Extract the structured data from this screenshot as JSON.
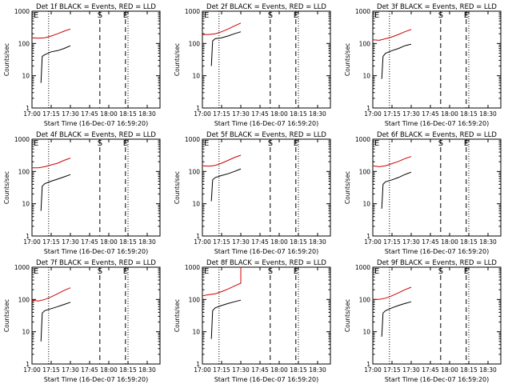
{
  "chart_data": [
    {
      "type": "line",
      "title": "Det 1f BLACK = Events, RED = LLD",
      "xlabel": "Start Time (16-Dec-07 16:59:20)",
      "ylabel": "Counts/sec",
      "x_tick_labels": [
        "17:00",
        "17:15",
        "17:30",
        "17:45",
        "18:00",
        "18:15",
        "18:30"
      ],
      "y_tick_labels": [
        "1",
        "10",
        "100",
        "1000"
      ],
      "ylim": [
        1,
        1000
      ],
      "log_y": true,
      "marker_labels": [
        "E",
        "S",
        "E"
      ],
      "dotted_lines": [
        "17:13",
        "18:15"
      ],
      "dashed_lines": [
        "17:53",
        "18:13"
      ],
      "series": [
        {
          "color": "#000000",
          "points": [
            [
              "17:07",
              6
            ],
            [
              "17:08",
              40
            ],
            [
              "17:10",
              45
            ],
            [
              "17:15",
              55
            ],
            [
              "17:20",
              60
            ],
            [
              "17:25",
              70
            ],
            [
              "17:30",
              85
            ]
          ]
        },
        {
          "color": "#cc0000",
          "points": [
            [
              "17:00",
              150
            ],
            [
              "17:05",
              145
            ],
            [
              "17:10",
              150
            ],
            [
              "17:15",
              170
            ],
            [
              "17:20",
              200
            ],
            [
              "17:25",
              240
            ],
            [
              "17:30",
              280
            ]
          ]
        }
      ]
    },
    {
      "type": "line",
      "title": "Det 2f BLACK = Events, RED = LLD",
      "xlabel": "Start Time (16-Dec-07 16:59:20)",
      "ylabel": "Counts/sec",
      "x_tick_labels": [
        "17:00",
        "17:15",
        "17:30",
        "17:45",
        "18:00",
        "18:15",
        "18:30"
      ],
      "y_tick_labels": [
        "1",
        "10",
        "100",
        "1000"
      ],
      "ylim": [
        1,
        1000
      ],
      "log_y": true,
      "marker_labels": [
        "E",
        "S",
        "E"
      ],
      "dotted_lines": [
        "17:13",
        "18:15"
      ],
      "dashed_lines": [
        "17:53",
        "18:13"
      ],
      "series": [
        {
          "color": "#000000",
          "points": [
            [
              "17:07",
              20
            ],
            [
              "17:08",
              120
            ],
            [
              "17:10",
              140
            ],
            [
              "17:15",
              150
            ],
            [
              "17:20",
              170
            ],
            [
              "17:25",
              200
            ],
            [
              "17:30",
              230
            ]
          ]
        },
        {
          "color": "#cc0000",
          "points": [
            [
              "17:00",
              190
            ],
            [
              "17:05",
              190
            ],
            [
              "17:10",
              200
            ],
            [
              "17:15",
              230
            ],
            [
              "17:20",
              280
            ],
            [
              "17:25",
              350
            ],
            [
              "17:30",
              430
            ]
          ]
        }
      ]
    },
    {
      "type": "line",
      "title": "Det 3f BLACK = Events, RED = LLD",
      "xlabel": "Start Time (16-Dec-07 16:59:20)",
      "ylabel": "Counts/sec",
      "x_tick_labels": [
        "17:00",
        "17:15",
        "17:30",
        "17:45",
        "18:00",
        "18:15",
        "18:30"
      ],
      "y_tick_labels": [
        "1",
        "10",
        "100",
        "1000"
      ],
      "ylim": [
        1,
        1000
      ],
      "log_y": true,
      "marker_labels": [
        "E",
        "S",
        "E"
      ],
      "dotted_lines": [
        "17:13",
        "18:15"
      ],
      "dashed_lines": [
        "17:53",
        "18:13"
      ],
      "series": [
        {
          "color": "#000000",
          "points": [
            [
              "17:07",
              8
            ],
            [
              "17:08",
              40
            ],
            [
              "17:10",
              50
            ],
            [
              "17:15",
              60
            ],
            [
              "17:20",
              70
            ],
            [
              "17:25",
              85
            ],
            [
              "17:30",
              95
            ]
          ]
        },
        {
          "color": "#cc0000",
          "points": [
            [
              "17:00",
              130
            ],
            [
              "17:05",
              125
            ],
            [
              "17:10",
              140
            ],
            [
              "17:15",
              160
            ],
            [
              "17:20",
              190
            ],
            [
              "17:25",
              230
            ],
            [
              "17:30",
              270
            ]
          ]
        }
      ]
    },
    {
      "type": "line",
      "title": "Det 4f BLACK = Events, RED = LLD",
      "xlabel": "Start Time (16-Dec-07 16:59:20)",
      "ylabel": "Counts/sec",
      "x_tick_labels": [
        "17:00",
        "17:15",
        "17:30",
        "17:45",
        "18:00",
        "18:15",
        "18:30"
      ],
      "y_tick_labels": [
        "1",
        "10",
        "100",
        "1000"
      ],
      "ylim": [
        1,
        1000
      ],
      "log_y": true,
      "marker_labels": [
        "E",
        "S",
        "E"
      ],
      "dotted_lines": [
        "17:13",
        "18:15"
      ],
      "dashed_lines": [
        "17:53",
        "18:13"
      ],
      "series": [
        {
          "color": "#000000",
          "points": [
            [
              "17:07",
              6
            ],
            [
              "17:08",
              35
            ],
            [
              "17:10",
              42
            ],
            [
              "17:15",
              50
            ],
            [
              "17:20",
              58
            ],
            [
              "17:25",
              68
            ],
            [
              "17:30",
              80
            ]
          ]
        },
        {
          "color": "#cc0000",
          "points": [
            [
              "17:00",
              130
            ],
            [
              "17:05",
              130
            ],
            [
              "17:10",
              140
            ],
            [
              "17:15",
              160
            ],
            [
              "17:20",
              180
            ],
            [
              "17:25",
              220
            ],
            [
              "17:30",
              260
            ]
          ]
        }
      ]
    },
    {
      "type": "line",
      "title": "Det 5f BLACK = Events, RED = LLD",
      "xlabel": "Start Time (16-Dec-07 16:59:20)",
      "ylabel": "Counts/sec",
      "x_tick_labels": [
        "17:00",
        "17:15",
        "17:30",
        "17:45",
        "18:00",
        "18:15",
        "18:30"
      ],
      "y_tick_labels": [
        "1",
        "10",
        "100",
        "1000"
      ],
      "ylim": [
        1,
        1000
      ],
      "log_y": true,
      "marker_labels": [
        "E",
        "S",
        "E"
      ],
      "dotted_lines": [
        "17:13",
        "18:15"
      ],
      "dashed_lines": [
        "17:53",
        "18:13"
      ],
      "series": [
        {
          "color": "#000000",
          "points": [
            [
              "17:07",
              12
            ],
            [
              "17:08",
              55
            ],
            [
              "17:10",
              65
            ],
            [
              "17:15",
              75
            ],
            [
              "17:20",
              85
            ],
            [
              "17:25",
              100
            ],
            [
              "17:30",
              120
            ]
          ]
        },
        {
          "color": "#cc0000",
          "points": [
            [
              "17:00",
              150
            ],
            [
              "17:05",
              145
            ],
            [
              "17:10",
              155
            ],
            [
              "17:15",
              180
            ],
            [
              "17:20",
              220
            ],
            [
              "17:25",
              270
            ],
            [
              "17:30",
              320
            ]
          ]
        }
      ]
    },
    {
      "type": "line",
      "title": "Det 6f BLACK = Events, RED = LLD",
      "xlabel": "Start Time (16-Dec-07 16:59:20)",
      "ylabel": "Counts/sec",
      "x_tick_labels": [
        "17:00",
        "17:15",
        "17:30",
        "17:45",
        "18:00",
        "18:15",
        "18:30"
      ],
      "y_tick_labels": [
        "1",
        "10",
        "100",
        "1000"
      ],
      "ylim": [
        1,
        1000
      ],
      "log_y": true,
      "marker_labels": [
        "E",
        "S",
        "E"
      ],
      "dotted_lines": [
        "17:13",
        "18:15"
      ],
      "dashed_lines": [
        "17:53",
        "18:13"
      ],
      "series": [
        {
          "color": "#000000",
          "points": [
            [
              "17:07",
              7
            ],
            [
              "17:08",
              40
            ],
            [
              "17:10",
              48
            ],
            [
              "17:15",
              55
            ],
            [
              "17:20",
              65
            ],
            [
              "17:25",
              80
            ],
            [
              "17:30",
              95
            ]
          ]
        },
        {
          "color": "#cc0000",
          "points": [
            [
              "17:00",
              150
            ],
            [
              "17:05",
              140
            ],
            [
              "17:10",
              150
            ],
            [
              "17:15",
              175
            ],
            [
              "17:20",
              205
            ],
            [
              "17:25",
              250
            ],
            [
              "17:30",
              290
            ]
          ]
        }
      ]
    },
    {
      "type": "line",
      "title": "Det 7f BLACK = Events, RED = LLD",
      "xlabel": "Start Time (16-Dec-07 16:59:20)",
      "ylabel": "Counts/sec",
      "x_tick_labels": [
        "17:00",
        "17:15",
        "17:30",
        "17:45",
        "18:00",
        "18:15",
        "18:30"
      ],
      "y_tick_labels": [
        "1",
        "10",
        "100",
        "1000"
      ],
      "ylim": [
        1,
        1000
      ],
      "log_y": true,
      "marker_labels": [
        "E",
        "S",
        "E"
      ],
      "dotted_lines": [
        "17:13",
        "18:15"
      ],
      "dashed_lines": [
        "17:53",
        "18:13"
      ],
      "series": [
        {
          "color": "#000000",
          "points": [
            [
              "17:07",
              5
            ],
            [
              "17:08",
              38
            ],
            [
              "17:10",
              45
            ],
            [
              "17:15",
              52
            ],
            [
              "17:20",
              60
            ],
            [
              "17:25",
              70
            ],
            [
              "17:30",
              82
            ]
          ]
        },
        {
          "color": "#cc0000",
          "points": [
            [
              "17:00",
              95
            ],
            [
              "17:05",
              90
            ],
            [
              "17:10",
              100
            ],
            [
              "17:15",
              120
            ],
            [
              "17:20",
              150
            ],
            [
              "17:25",
              190
            ],
            [
              "17:30",
              230
            ]
          ]
        }
      ]
    },
    {
      "type": "line",
      "title": "Det 8f BLACK = Events, RED = LLD",
      "xlabel": "Start Time (16-Dec-07 16:59:20)",
      "ylabel": "Counts/sec",
      "x_tick_labels": [
        "17:00",
        "17:15",
        "17:30",
        "17:45",
        "18:00",
        "18:15",
        "18:30"
      ],
      "y_tick_labels": [
        "1",
        "10",
        "100",
        "1000"
      ],
      "ylim": [
        1,
        1000
      ],
      "log_y": true,
      "marker_labels": [
        "E",
        "S",
        "E"
      ],
      "dotted_lines": [
        "17:13",
        "18:15"
      ],
      "dashed_lines": [
        "17:53",
        "18:13"
      ],
      "series": [
        {
          "color": "#000000",
          "points": [
            [
              "17:07",
              6
            ],
            [
              "17:08",
              45
            ],
            [
              "17:10",
              55
            ],
            [
              "17:15",
              65
            ],
            [
              "17:20",
              75
            ],
            [
              "17:25",
              85
            ],
            [
              "17:30",
              95
            ]
          ]
        },
        {
          "color": "#cc0000",
          "points": [
            [
              "17:00",
              130
            ],
            [
              "17:05",
              140
            ],
            [
              "17:10",
              150
            ],
            [
              "17:15",
              175
            ],
            [
              "17:20",
              210
            ],
            [
              "17:25",
              260
            ],
            [
              "17:30",
              320
            ],
            [
              "17:30",
              1000
            ]
          ]
        }
      ]
    },
    {
      "type": "line",
      "title": "Det 9f BLACK = Events, RED = LLD",
      "xlabel": "Start Time (16-Dec-07 16:59:20)",
      "ylabel": "Counts/sec",
      "x_tick_labels": [
        "17:00",
        "17:15",
        "17:30",
        "17:45",
        "18:00",
        "18:15",
        "18:30"
      ],
      "y_tick_labels": [
        "1",
        "10",
        "100",
        "1000"
      ],
      "ylim": [
        1,
        1000
      ],
      "log_y": true,
      "marker_labels": [
        "E",
        "S",
        "E"
      ],
      "dotted_lines": [
        "17:13",
        "18:15"
      ],
      "dashed_lines": [
        "17:53",
        "18:13"
      ],
      "series": [
        {
          "color": "#000000",
          "points": [
            [
              "17:07",
              7
            ],
            [
              "17:08",
              38
            ],
            [
              "17:10",
              45
            ],
            [
              "17:15",
              55
            ],
            [
              "17:20",
              65
            ],
            [
              "17:25",
              75
            ],
            [
              "17:30",
              85
            ]
          ]
        },
        {
          "color": "#cc0000",
          "points": [
            [
              "17:00",
              100
            ],
            [
              "17:05",
              100
            ],
            [
              "17:10",
              110
            ],
            [
              "17:15",
              130
            ],
            [
              "17:20",
              160
            ],
            [
              "17:25",
              200
            ],
            [
              "17:30",
              240
            ]
          ]
        }
      ]
    }
  ]
}
